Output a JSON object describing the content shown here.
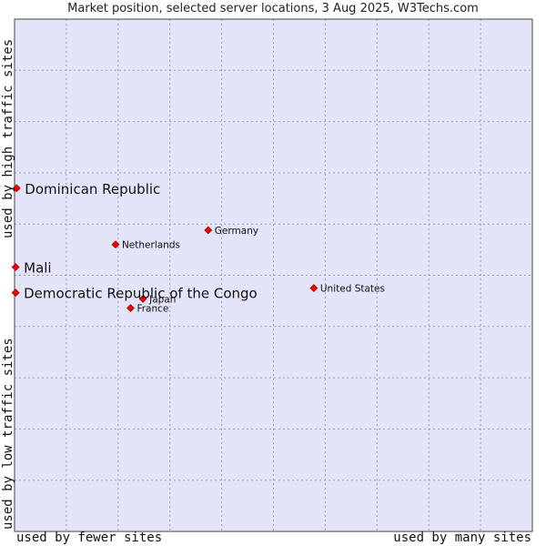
{
  "chart_data": {
    "type": "scatter",
    "title": "Market position, selected server locations, 3 Aug 2025, W3Techs.com",
    "xlabel_left": "used by fewer sites",
    "xlabel_right": "used by many sites",
    "ylabel_top": "used by high traffic sites",
    "ylabel_bottom": "used by low traffic sites",
    "xlim": [
      0,
      100
    ],
    "ylim": [
      0,
      100
    ],
    "grid": true,
    "points": [
      {
        "label": "Dominican Republic",
        "x": 0.4,
        "y": 67.0,
        "highlight": true
      },
      {
        "label": "Mali",
        "x": 0.2,
        "y": 51.6,
        "highlight": true
      },
      {
        "label": "Democratic Republic of the Congo",
        "x": 0.2,
        "y": 46.6,
        "highlight": true
      },
      {
        "label": "Germany",
        "x": 37.4,
        "y": 58.8,
        "highlight": false
      },
      {
        "label": "Netherlands",
        "x": 19.5,
        "y": 56.0,
        "highlight": false
      },
      {
        "label": "United States",
        "x": 57.8,
        "y": 47.5,
        "highlight": false
      },
      {
        "label": "Japan",
        "x": 24.8,
        "y": 45.4,
        "highlight": false
      },
      {
        "label": "France",
        "x": 22.4,
        "y": 43.6,
        "highlight": false
      }
    ],
    "colors": {
      "plot_bg": "#e4e4f8",
      "grid": "#9a9ab8",
      "border": "#444444",
      "marker": "#ee0000",
      "text": "#111111"
    }
  }
}
